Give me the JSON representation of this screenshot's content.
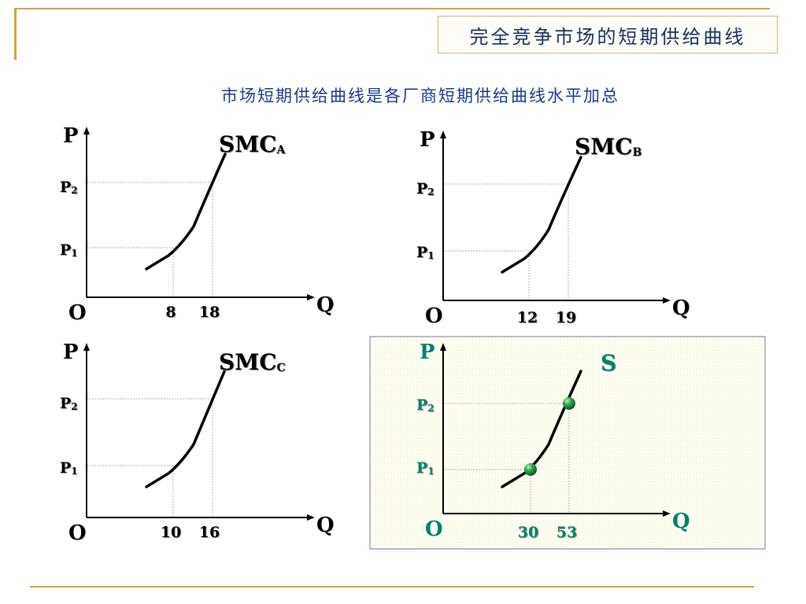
{
  "header": {
    "title": "完全竞争市场的短期供给曲线",
    "subtitle": "市场短期供给曲线是各厂商短期供给曲线水平加总"
  },
  "colors": {
    "accent_line": "#c8a840",
    "title_text": "#18305a",
    "subtitle_text": "#1a3a8a",
    "teal_text": "#00806e",
    "marker": "#1a9a3a"
  },
  "axis_labels": {
    "y": "P",
    "x": "Q",
    "origin": "O"
  },
  "price_labels": {
    "p1_base": "P",
    "p1_sub": "1",
    "p2_base": "P",
    "p2_sub": "2"
  },
  "chart_data": [
    {
      "type": "line",
      "curve_label": {
        "base": "SMC",
        "sub": "A"
      },
      "x_ticks": [
        "8",
        "18"
      ],
      "series": [
        {
          "values": [
            {
              "x": 8,
              "y": "P1"
            },
            {
              "x": 18,
              "y": "P2"
            }
          ]
        }
      ]
    },
    {
      "type": "line",
      "curve_label": {
        "base": "SMC",
        "sub": "B"
      },
      "x_ticks": [
        "12",
        "19"
      ],
      "series": [
        {
          "values": [
            {
              "x": 12,
              "y": "P1"
            },
            {
              "x": 19,
              "y": "P2"
            }
          ]
        }
      ]
    },
    {
      "type": "line",
      "curve_label": {
        "base": "SMC",
        "sub": "C"
      },
      "x_ticks": [
        "10",
        "16"
      ],
      "series": [
        {
          "values": [
            {
              "x": 10,
              "y": "P1"
            },
            {
              "x": 16,
              "y": "P2"
            }
          ]
        }
      ]
    },
    {
      "type": "line",
      "curve_label": {
        "base": "S",
        "sub": ""
      },
      "x_ticks": [
        "30",
        "53"
      ],
      "markers": true,
      "series": [
        {
          "values": [
            {
              "x": 30,
              "y": "P1"
            },
            {
              "x": 53,
              "y": "P2"
            }
          ]
        }
      ]
    }
  ]
}
